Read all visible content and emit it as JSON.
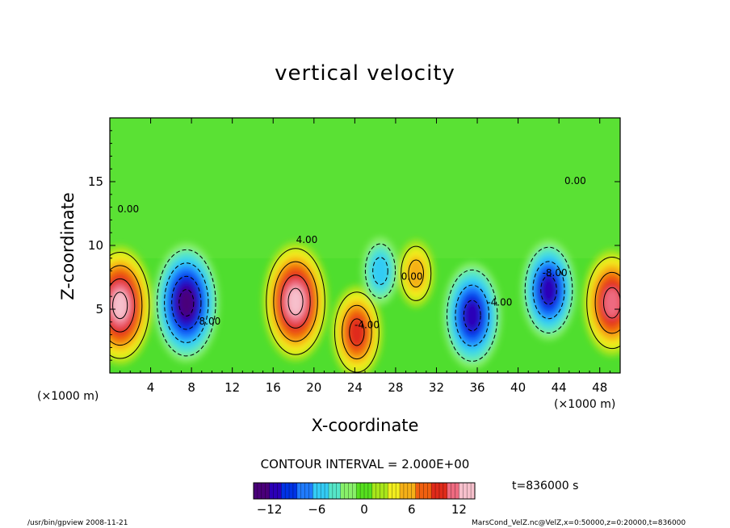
{
  "chart_data": {
    "type": "heatmap",
    "title": "vertical velocity",
    "xlabel": "X-coordinate",
    "ylabel": "Z-coordinate",
    "x_unit": "(×1000 m)",
    "xlim": [
      0,
      50
    ],
    "ylim": [
      0,
      20
    ],
    "x_ticks": [
      4,
      8,
      12,
      16,
      20,
      24,
      28,
      32,
      36,
      40,
      44,
      48
    ],
    "y_ticks": [
      5,
      10,
      15
    ],
    "contour_interval_label": "CONTOUR INTERVAL = 2.000E+00",
    "contour_labels": [
      {
        "text": "4.00",
        "x": 19.3,
        "z": 10.2
      },
      {
        "text": "-4.00",
        "x": 25.2,
        "z": 3.5
      },
      {
        "text": "0.00",
        "x": 1.8,
        "z": 12.6
      },
      {
        "text": "8.00",
        "x": 9.8,
        "z": 3.8
      },
      {
        "text": "0.00",
        "x": 29.6,
        "z": 7.3
      },
      {
        "text": "-4.00",
        "x": 38.2,
        "z": 5.3
      },
      {
        "text": "-8.00",
        "x": 43.6,
        "z": 7.6
      },
      {
        "text": "0.00",
        "x": 45.6,
        "z": 14.8
      }
    ],
    "features": [
      {
        "sign": "positive",
        "x": 1.0,
        "z": 5.3,
        "peak": 14
      },
      {
        "sign": "negative",
        "x": 7.5,
        "z": 5.5,
        "peak": -14
      },
      {
        "sign": "positive",
        "x": 18.2,
        "z": 5.6,
        "peak": 14
      },
      {
        "sign": "positive",
        "x": 24.2,
        "z": 3.2,
        "peak": 10
      },
      {
        "sign": "negative",
        "x": 26.5,
        "z": 8.0,
        "peak": -6
      },
      {
        "sign": "positive",
        "x": 30.0,
        "z": 7.8,
        "peak": 6
      },
      {
        "sign": "negative",
        "x": 35.5,
        "z": 4.5,
        "peak": -12
      },
      {
        "sign": "negative",
        "x": 43.0,
        "z": 6.5,
        "peak": -11
      },
      {
        "sign": "positive",
        "x": 49.2,
        "z": 5.5,
        "peak": 12
      }
    ]
  },
  "colorbar": {
    "min": -14,
    "max": 14,
    "tick_values": [
      -12,
      -6,
      0,
      6,
      12
    ],
    "tick_labels": [
      "−12",
      "−6",
      "0",
      "6",
      "12"
    ]
  },
  "time_label": "t=836000 s",
  "footer_left": "/usr/bin/gpview 2008-11-21",
  "footer_right": "MarsCond_VelZ.nc@VelZ,x=0:50000,z=0:20000,t=836000"
}
